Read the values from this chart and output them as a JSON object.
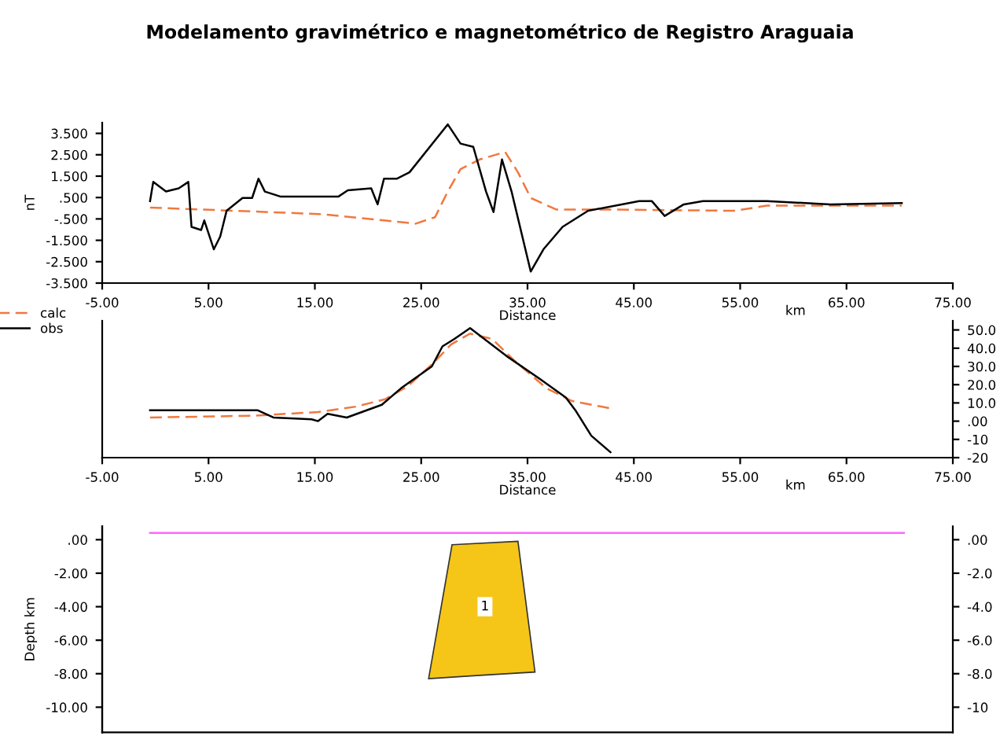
{
  "chart_data": [
    {
      "type": "line",
      "title": "Modelamento gravimétrico e magnetométrico de Registro Araguaia",
      "xlabel": "Distance",
      "ylabel": "nT",
      "annotations": [
        "km"
      ],
      "xlim": [
        -5,
        75
      ],
      "xticks": [
        {
          "value": -5,
          "label": "-5.00"
        },
        {
          "value": 5,
          "label": "5.00"
        },
        {
          "value": 15,
          "label": "15.00"
        },
        {
          "value": 25,
          "label": "25.00"
        },
        {
          "value": 35,
          "label": "35.00"
        },
        {
          "value": 45,
          "label": "45.00"
        },
        {
          "value": 55,
          "label": "55.00"
        },
        {
          "value": 65,
          "label": "65.00"
        },
        {
          "value": 75,
          "label": "75.00"
        }
      ],
      "ylim": [
        -3.5,
        4.0
      ],
      "yticks": [
        {
          "value": 3.5,
          "label": "3.500"
        },
        {
          "value": 2.5,
          "label": "2.500"
        },
        {
          "value": 1.5,
          "label": "1.500"
        },
        {
          "value": 0.5,
          "label": ".500"
        },
        {
          "value": -0.5,
          "label": "-.500"
        },
        {
          "value": -1.5,
          "label": "-1.500"
        },
        {
          "value": -2.5,
          "label": "-2.500"
        },
        {
          "value": -3.5,
          "label": "-3.500"
        }
      ],
      "legend": "bottom left",
      "grid": false,
      "series": [
        {
          "name": "calc",
          "color": "#f07840",
          "line_style": "dashed",
          "x": [
            -0.5,
            15.4,
            21.5,
            24.5,
            26.3,
            27.5,
            28.7,
            30.5,
            32.9,
            34.1,
            35.3,
            37.7,
            42.5,
            54.5,
            57.5,
            70.2
          ],
          "values": [
            0.03,
            -0.27,
            -0.57,
            -0.72,
            -0.42,
            0.78,
            1.83,
            2.28,
            2.63,
            1.68,
            0.48,
            -0.06,
            -0.06,
            -0.12,
            0.12,
            0.12
          ]
        },
        {
          "name": "obs",
          "color": "#000000",
          "line_style": "solid",
          "x": [
            -0.5,
            -0.2,
            1.0,
            2.2,
            3.1,
            3.4,
            4.3,
            4.6,
            5.5,
            6.1,
            6.7,
            8.2,
            9.1,
            9.7,
            10.3,
            11.8,
            17.2,
            18.1,
            20.3,
            20.9,
            21.5,
            22.7,
            23.9,
            27.5,
            28.7,
            29.9,
            31.1,
            31.8,
            32.6,
            33.5,
            35.3,
            36.5,
            38.3,
            40.7,
            45.5,
            46.7,
            47.9,
            49.7,
            51.5,
            57.5,
            63.5,
            70.2
          ],
          "values": [
            0.33,
            1.23,
            0.78,
            0.93,
            1.23,
            -0.87,
            -1.02,
            -0.57,
            -1.92,
            -1.32,
            -0.12,
            0.48,
            0.48,
            1.38,
            0.78,
            0.54,
            0.54,
            0.84,
            0.93,
            0.18,
            1.38,
            1.38,
            1.68,
            3.92,
            3.02,
            2.87,
            0.78,
            -0.18,
            2.28,
            0.78,
            -2.96,
            -1.92,
            -0.87,
            -0.12,
            0.33,
            0.33,
            -0.36,
            0.18,
            0.33,
            0.33,
            0.18,
            0.24
          ]
        }
      ]
    },
    {
      "type": "line",
      "xlabel": "Distance",
      "annotations": [
        "km"
      ],
      "xlim": [
        -5,
        75
      ],
      "xticks": [
        {
          "value": -5,
          "label": "-5.00"
        },
        {
          "value": 5,
          "label": "5.00"
        },
        {
          "value": 15,
          "label": "15.00"
        },
        {
          "value": 25,
          "label": "25.00"
        },
        {
          "value": 35,
          "label": "35.00"
        },
        {
          "value": 45,
          "label": "45.00"
        },
        {
          "value": 55,
          "label": "55.00"
        },
        {
          "value": 65,
          "label": "65.00"
        },
        {
          "value": 75,
          "label": "75.00"
        }
      ],
      "y2lim": [
        -20,
        55
      ],
      "y2ticks": [
        {
          "value": 50,
          "label": "50.0"
        },
        {
          "value": 40,
          "label": "40.0"
        },
        {
          "value": 30,
          "label": "30.0"
        },
        {
          "value": 20,
          "label": "20.0"
        },
        {
          "value": 10,
          "label": "10.0"
        },
        {
          "value": 0,
          "label": ".00"
        },
        {
          "value": -10,
          "label": "-10"
        },
        {
          "value": -20,
          "label": "-20"
        }
      ],
      "grid": false,
      "series": [
        {
          "color": "#f07840",
          "line_style": "dashed",
          "axis": "y2",
          "x": [
            -0.5,
            9.3,
            15.3,
            18.9,
            21.6,
            23.7,
            26.0,
            27.8,
            29.6,
            31.7,
            33.8,
            36.8,
            39.2,
            42.8
          ],
          "values": [
            2,
            3,
            5,
            8,
            12,
            19,
            31,
            42,
            48,
            45,
            33,
            18,
            11,
            7
          ]
        },
        {
          "color": "#000000",
          "line_style": "solid",
          "axis": "y2",
          "x": [
            -0.5,
            9.6,
            11.1,
            14.7,
            15.3,
            16.2,
            18.0,
            21.3,
            23.1,
            26.0,
            27.0,
            28.1,
            29.6,
            33.2,
            36.2,
            38.6,
            39.5,
            41.0,
            42.8
          ],
          "values": [
            6,
            6,
            2,
            1,
            0,
            4,
            2,
            9,
            18,
            30,
            41,
            45,
            51,
            35,
            23,
            13,
            6,
            -8,
            -17
          ]
        }
      ]
    },
    {
      "type": "line",
      "ylabel": "Depth km",
      "annotations": [
        {
          "text": "1",
          "x": 31,
          "y": -4
        }
      ],
      "xlim": [
        -5,
        75
      ],
      "tick_labels": "y",
      "ylim": [
        -11.5,
        0.8
      ],
      "yticks": [
        {
          "value": 0,
          "label": ".00"
        },
        {
          "value": -2,
          "label": "-2.00"
        },
        {
          "value": -4,
          "label": "-4.00"
        },
        {
          "value": -6,
          "label": "-6.00"
        },
        {
          "value": -8,
          "label": "-8.00"
        },
        {
          "value": -10,
          "label": "-10.00"
        }
      ],
      "y2lim": [
        -11.5,
        0.8
      ],
      "y2ticks": [
        {
          "value": 0,
          "label": ".00"
        },
        {
          "value": -2,
          "label": "-2.0"
        },
        {
          "value": -4,
          "label": "-4.0"
        },
        {
          "value": -6,
          "label": "-6.0"
        },
        {
          "value": -8,
          "label": "-8.0"
        },
        {
          "value": -10,
          "label": "-10"
        }
      ],
      "grid": false,
      "series": [
        {
          "type": "line",
          "color": "#ff66ff",
          "line_style": "solid",
          "x": [
            -0.5,
            70.4
          ],
          "values": [
            0.4,
            0.4
          ]
        },
        {
          "type": "area",
          "color": "#f5c518",
          "x": [
            27.9,
            34.1,
            35.7,
            30.5,
            25.7
          ],
          "values": [
            -0.3,
            -0.1,
            -7.9,
            -8.1,
            -8.3
          ]
        }
      ]
    }
  ]
}
